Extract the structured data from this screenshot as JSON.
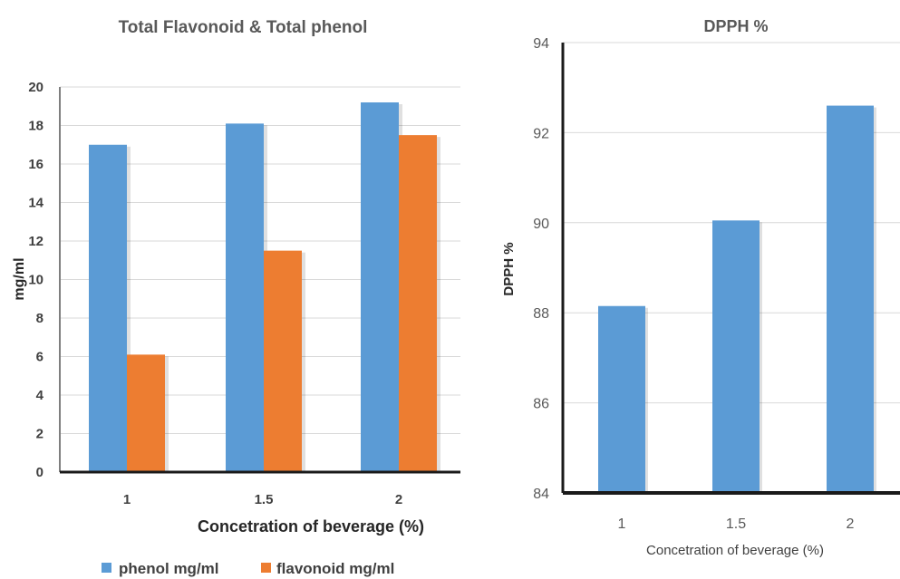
{
  "chart_data": [
    {
      "type": "bar",
      "title": "Total Flavonoid & Total phenol",
      "xlabel": "Concetration  of  beverage (%)",
      "ylabel": "mg/ml",
      "categories": [
        "1",
        "1.5",
        "2"
      ],
      "yticks": [
        "0",
        "2",
        "4",
        "6",
        "8",
        "10",
        "12",
        "14",
        "16",
        "18",
        "20"
      ],
      "ylim": [
        0,
        20
      ],
      "grid": true,
      "legend": "bottom",
      "series": [
        {
          "name": "phenol mg/ml",
          "color": "#5B9BD5",
          "values": [
            17.0,
            18.1,
            19.2
          ]
        },
        {
          "name": "flavonoid mg/ml",
          "color": "#ED7D31",
          "values": [
            6.1,
            11.5,
            17.5
          ]
        }
      ]
    },
    {
      "type": "bar",
      "title": "DPPH %",
      "xlabel": "Concetration of beverage (%)",
      "ylabel": "DPPH %",
      "categories": [
        "1",
        "1.5",
        "2"
      ],
      "yticks": [
        "84",
        "86",
        "88",
        "90",
        "92",
        "94"
      ],
      "ylim": [
        84,
        94
      ],
      "grid": true,
      "legend": "none",
      "series": [
        {
          "color": "#5B9BD5",
          "values": [
            88.15,
            90.05,
            92.6
          ]
        }
      ]
    }
  ]
}
